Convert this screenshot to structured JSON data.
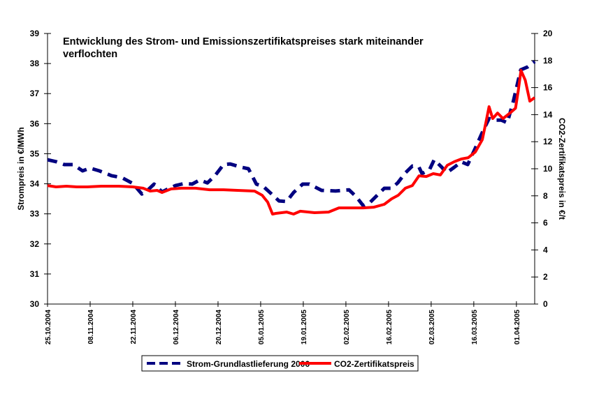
{
  "chart_data": {
    "type": "line",
    "title": "Entwicklung des Strom- und Emissionszertifikatspreises stark miteinander verflochten",
    "title_lines": [
      "Entwicklung des Strom- und Emissionszertifikatspreises stark miteinander",
      "verflochten"
    ],
    "ylabel": "Strompreis in €/MWh",
    "y2label": "CO2-Zertifikatspreis in  €/t",
    "ylim": [
      30,
      39
    ],
    "y2lim": [
      0,
      20
    ],
    "yticks": [
      "30",
      "31",
      "32",
      "33",
      "34",
      "35",
      "36",
      "37",
      "38",
      "39"
    ],
    "y2ticks": [
      "0",
      "2",
      "4",
      "6",
      "8",
      "10",
      "12",
      "14",
      "16",
      "18",
      "20"
    ],
    "x_unit": "days since 25.10.2004",
    "xlim": [
      0,
      160
    ],
    "xticks": [
      {
        "day": 0,
        "label": "25.10.2004"
      },
      {
        "day": 14,
        "label": "08.11.2004"
      },
      {
        "day": 28,
        "label": "22.11.2004"
      },
      {
        "day": 42,
        "label": "06.12.2004"
      },
      {
        "day": 56,
        "label": "20.12.2004"
      },
      {
        "day": 70,
        "label": "05.01.2005"
      },
      {
        "day": 84,
        "label": "19.01.2005"
      },
      {
        "day": 98,
        "label": "02.02.2005"
      },
      {
        "day": 112,
        "label": "16.02.2005"
      },
      {
        "day": 126,
        "label": "02.03.2005"
      },
      {
        "day": 140,
        "label": "16.03.2005"
      },
      {
        "day": 154,
        "label": "01.04.2005"
      }
    ],
    "legend_position": "bottom",
    "series": [
      {
        "name": "Strom-Grundlastlieferung 2006",
        "axis": "left",
        "color": "#000080",
        "style": "dashed",
        "x": [
          0,
          3,
          5.5,
          8.5,
          11.5,
          14,
          17,
          21,
          24.5,
          28,
          31,
          33,
          35,
          37.6,
          40,
          42,
          45,
          47.5,
          50,
          52.5,
          55,
          57.8,
          60,
          63.6,
          66,
          68.6,
          71,
          74,
          76,
          78.5,
          80.8,
          83.8,
          86,
          90,
          94.6,
          99,
          101.4,
          103.7,
          106,
          108.3,
          110.6,
          113,
          115,
          117.5,
          119.8,
          122,
          123,
          125.5,
          127,
          129.5,
          131,
          133.6,
          135.9,
          138,
          140.5,
          142.8,
          145,
          146.4,
          149,
          151,
          153,
          155.4,
          157.7,
          160
        ],
        "y": [
          34.8,
          34.73,
          34.64,
          34.64,
          34.43,
          34.52,
          34.43,
          34.27,
          34.2,
          34.01,
          33.66,
          33.8,
          33.99,
          33.73,
          33.85,
          33.94,
          34.01,
          33.99,
          34.13,
          34.03,
          34.27,
          34.64,
          34.66,
          34.55,
          34.5,
          33.99,
          33.9,
          33.62,
          33.43,
          33.41,
          33.71,
          33.99,
          33.99,
          33.78,
          33.76,
          33.8,
          33.57,
          33.27,
          33.39,
          33.62,
          33.85,
          33.85,
          34.03,
          34.36,
          34.59,
          34.55,
          34.34,
          34.48,
          34.8,
          34.55,
          34.36,
          34.55,
          34.73,
          34.64,
          35.19,
          35.71,
          36.17,
          36.12,
          36.12,
          36.03,
          36.75,
          37.79,
          37.89,
          38.07
        ]
      },
      {
        "name": "CO2-Zertifikatspreis",
        "axis": "right",
        "color": "#ff0000",
        "style": "solid",
        "x": [
          0,
          2.8,
          6.2,
          9.6,
          13,
          17.7,
          23.4,
          28,
          31.4,
          33.7,
          36,
          37.6,
          40.6,
          44,
          48.6,
          53.2,
          57.8,
          62.4,
          68,
          70.5,
          72.3,
          73.9,
          75,
          78.5,
          80.8,
          83,
          87.7,
          92.3,
          95.7,
          99,
          103.7,
          107.2,
          110.6,
          113,
          115.2,
          117.5,
          119.8,
          122,
          124.4,
          126.7,
          129,
          131.3,
          133.6,
          135.9,
          138.2,
          140.5,
          142.8,
          144,
          145,
          146.2,
          147.8,
          149.6,
          151.9,
          153.7,
          154.6,
          155.5,
          156.9,
          158.4,
          160
        ],
        "y": [
          8.76,
          8.66,
          8.71,
          8.66,
          8.66,
          8.71,
          8.71,
          8.66,
          8.56,
          8.35,
          8.4,
          8.25,
          8.51,
          8.56,
          8.56,
          8.45,
          8.45,
          8.4,
          8.35,
          8.04,
          7.53,
          6.65,
          6.7,
          6.8,
          6.65,
          6.86,
          6.75,
          6.8,
          7.11,
          7.11,
          7.11,
          7.16,
          7.37,
          7.78,
          8.04,
          8.56,
          8.76,
          9.48,
          9.43,
          9.64,
          9.54,
          10.26,
          10.52,
          10.72,
          10.82,
          11.24,
          12.16,
          13.45,
          14.59,
          13.71,
          14.12,
          13.71,
          14.12,
          14.48,
          15.77,
          17.27,
          16.55,
          15.0,
          15.26
        ]
      }
    ]
  }
}
